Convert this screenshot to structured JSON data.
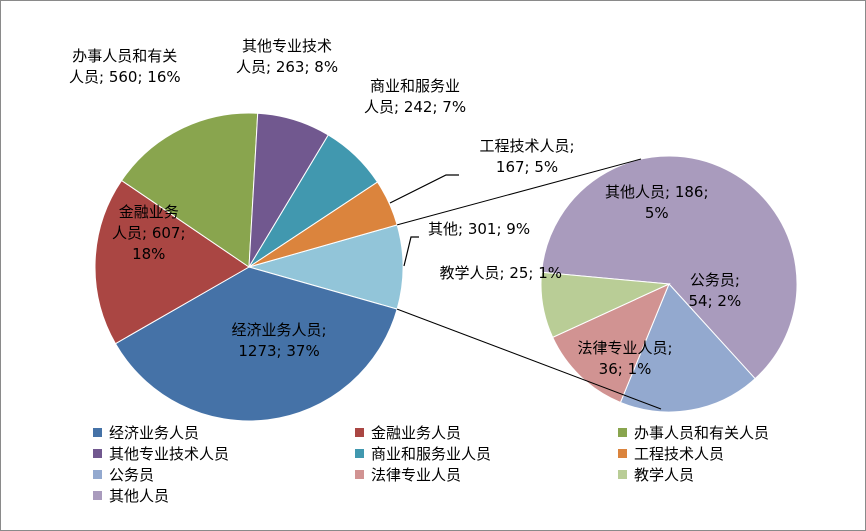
{
  "chart_data": {
    "type": "pie",
    "subtype": "pie-of-pie",
    "title": "",
    "slices": [
      {
        "name": "经济业务人员",
        "value": 1273,
        "percent": "37%",
        "color": "#4572A7",
        "label_lines": [
          "经济业务人员;",
          "1273; 37%"
        ]
      },
      {
        "name": "金融业务人员",
        "value": 607,
        "percent": "18%",
        "color": "#AA4643",
        "label_lines": [
          "金融业务",
          "人员; 607;",
          "18%"
        ]
      },
      {
        "name": "办事人员和有关人员",
        "value": 560,
        "percent": "16%",
        "color": "#89A54E",
        "label_lines": [
          "办事人员和有关",
          "人员; 560; 16%"
        ]
      },
      {
        "name": "其他专业技术人员",
        "value": 263,
        "percent": "8%",
        "color": "#71588F",
        "label_lines": [
          "其他专业技术",
          "人员; 263; 8%"
        ]
      },
      {
        "name": "商业和服务业人员",
        "value": 242,
        "percent": "7%",
        "color": "#4198AF",
        "label_lines": [
          "商业和服务业",
          "人员; 242; 7%"
        ]
      },
      {
        "name": "工程技术人员",
        "value": 167,
        "percent": "5%",
        "color": "#DB843D",
        "label_lines": [
          "工程技术人员;",
          "167; 5%"
        ]
      },
      {
        "name": "公务员",
        "value": 54,
        "percent": "2%",
        "color": "#93A9CF",
        "label_lines": [
          "公务员;",
          "54; 2%"
        ]
      },
      {
        "name": "法律专业人员",
        "value": 36,
        "percent": "1%",
        "color": "#D19392",
        "label_lines": [
          "法律专业人员;",
          "36; 1%"
        ]
      },
      {
        "name": "教学人员",
        "value": 25,
        "percent": "1%",
        "color": "#B9CD96",
        "label_lines": [
          "教学人员; 25; 1%"
        ]
      },
      {
        "name": "其他人员",
        "value": 186,
        "percent": "5%",
        "color": "#A99BBD",
        "label_lines": [
          "其他人员; 186;",
          "5%"
        ]
      }
    ],
    "other_slice": {
      "name": "其他",
      "value": 301,
      "percent": "9%",
      "color": "#92C5D9",
      "label_lines": [
        "其他; 301; 9%"
      ]
    },
    "legend": {
      "position": "bottom",
      "items": [
        "经济业务人员",
        "金融业务人员",
        "办事人员和有关人员",
        "其他专业技术人员",
        "商业和服务业人员",
        "工程技术人员",
        "公务员",
        "法律专业人员",
        "教学人员",
        "其他人员"
      ]
    }
  }
}
